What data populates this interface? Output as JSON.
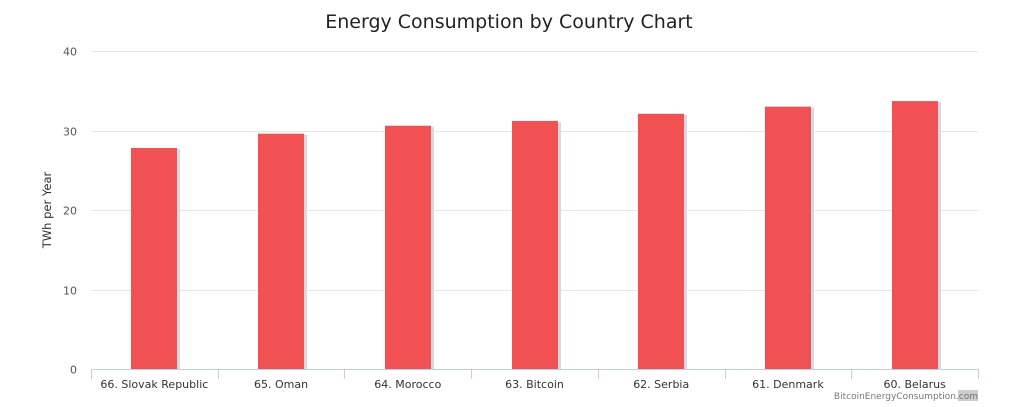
{
  "chart_data": {
    "type": "bar",
    "title": "Energy Consumption by Country Chart",
    "xlabel": "",
    "ylabel": "TWh per Year",
    "categories": [
      "66. Slovak Republic",
      "65. Oman",
      "64. Morocco",
      "63. Bitcoin",
      "62. Serbia",
      "61. Denmark",
      "60. Belarus"
    ],
    "values": [
      27.8,
      29.6,
      30.6,
      31.2,
      32.1,
      33.0,
      33.7
    ],
    "ylim": [
      0,
      40
    ],
    "yticks": [
      "0",
      "10",
      "20",
      "30",
      "40"
    ],
    "grid": true,
    "legend": "none",
    "bar_color": "#f15152",
    "bar_shadow_color": "#d8d8e0"
  },
  "credit": {
    "text_main": "BitcoinEnergyConsumption",
    "text_suffix": ".com"
  }
}
